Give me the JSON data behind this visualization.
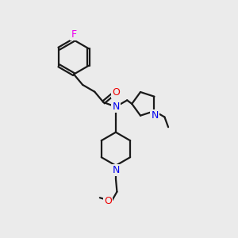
{
  "background_color": "#ebebeb",
  "bond_color": "#1a1a1a",
  "N_color": "#0000ee",
  "O_color": "#ee0000",
  "F_color": "#ee00ee",
  "line_width": 1.6,
  "figsize": [
    3.0,
    3.0
  ],
  "dpi": 100,
  "xlim": [
    0,
    10
  ],
  "ylim": [
    0,
    10
  ]
}
